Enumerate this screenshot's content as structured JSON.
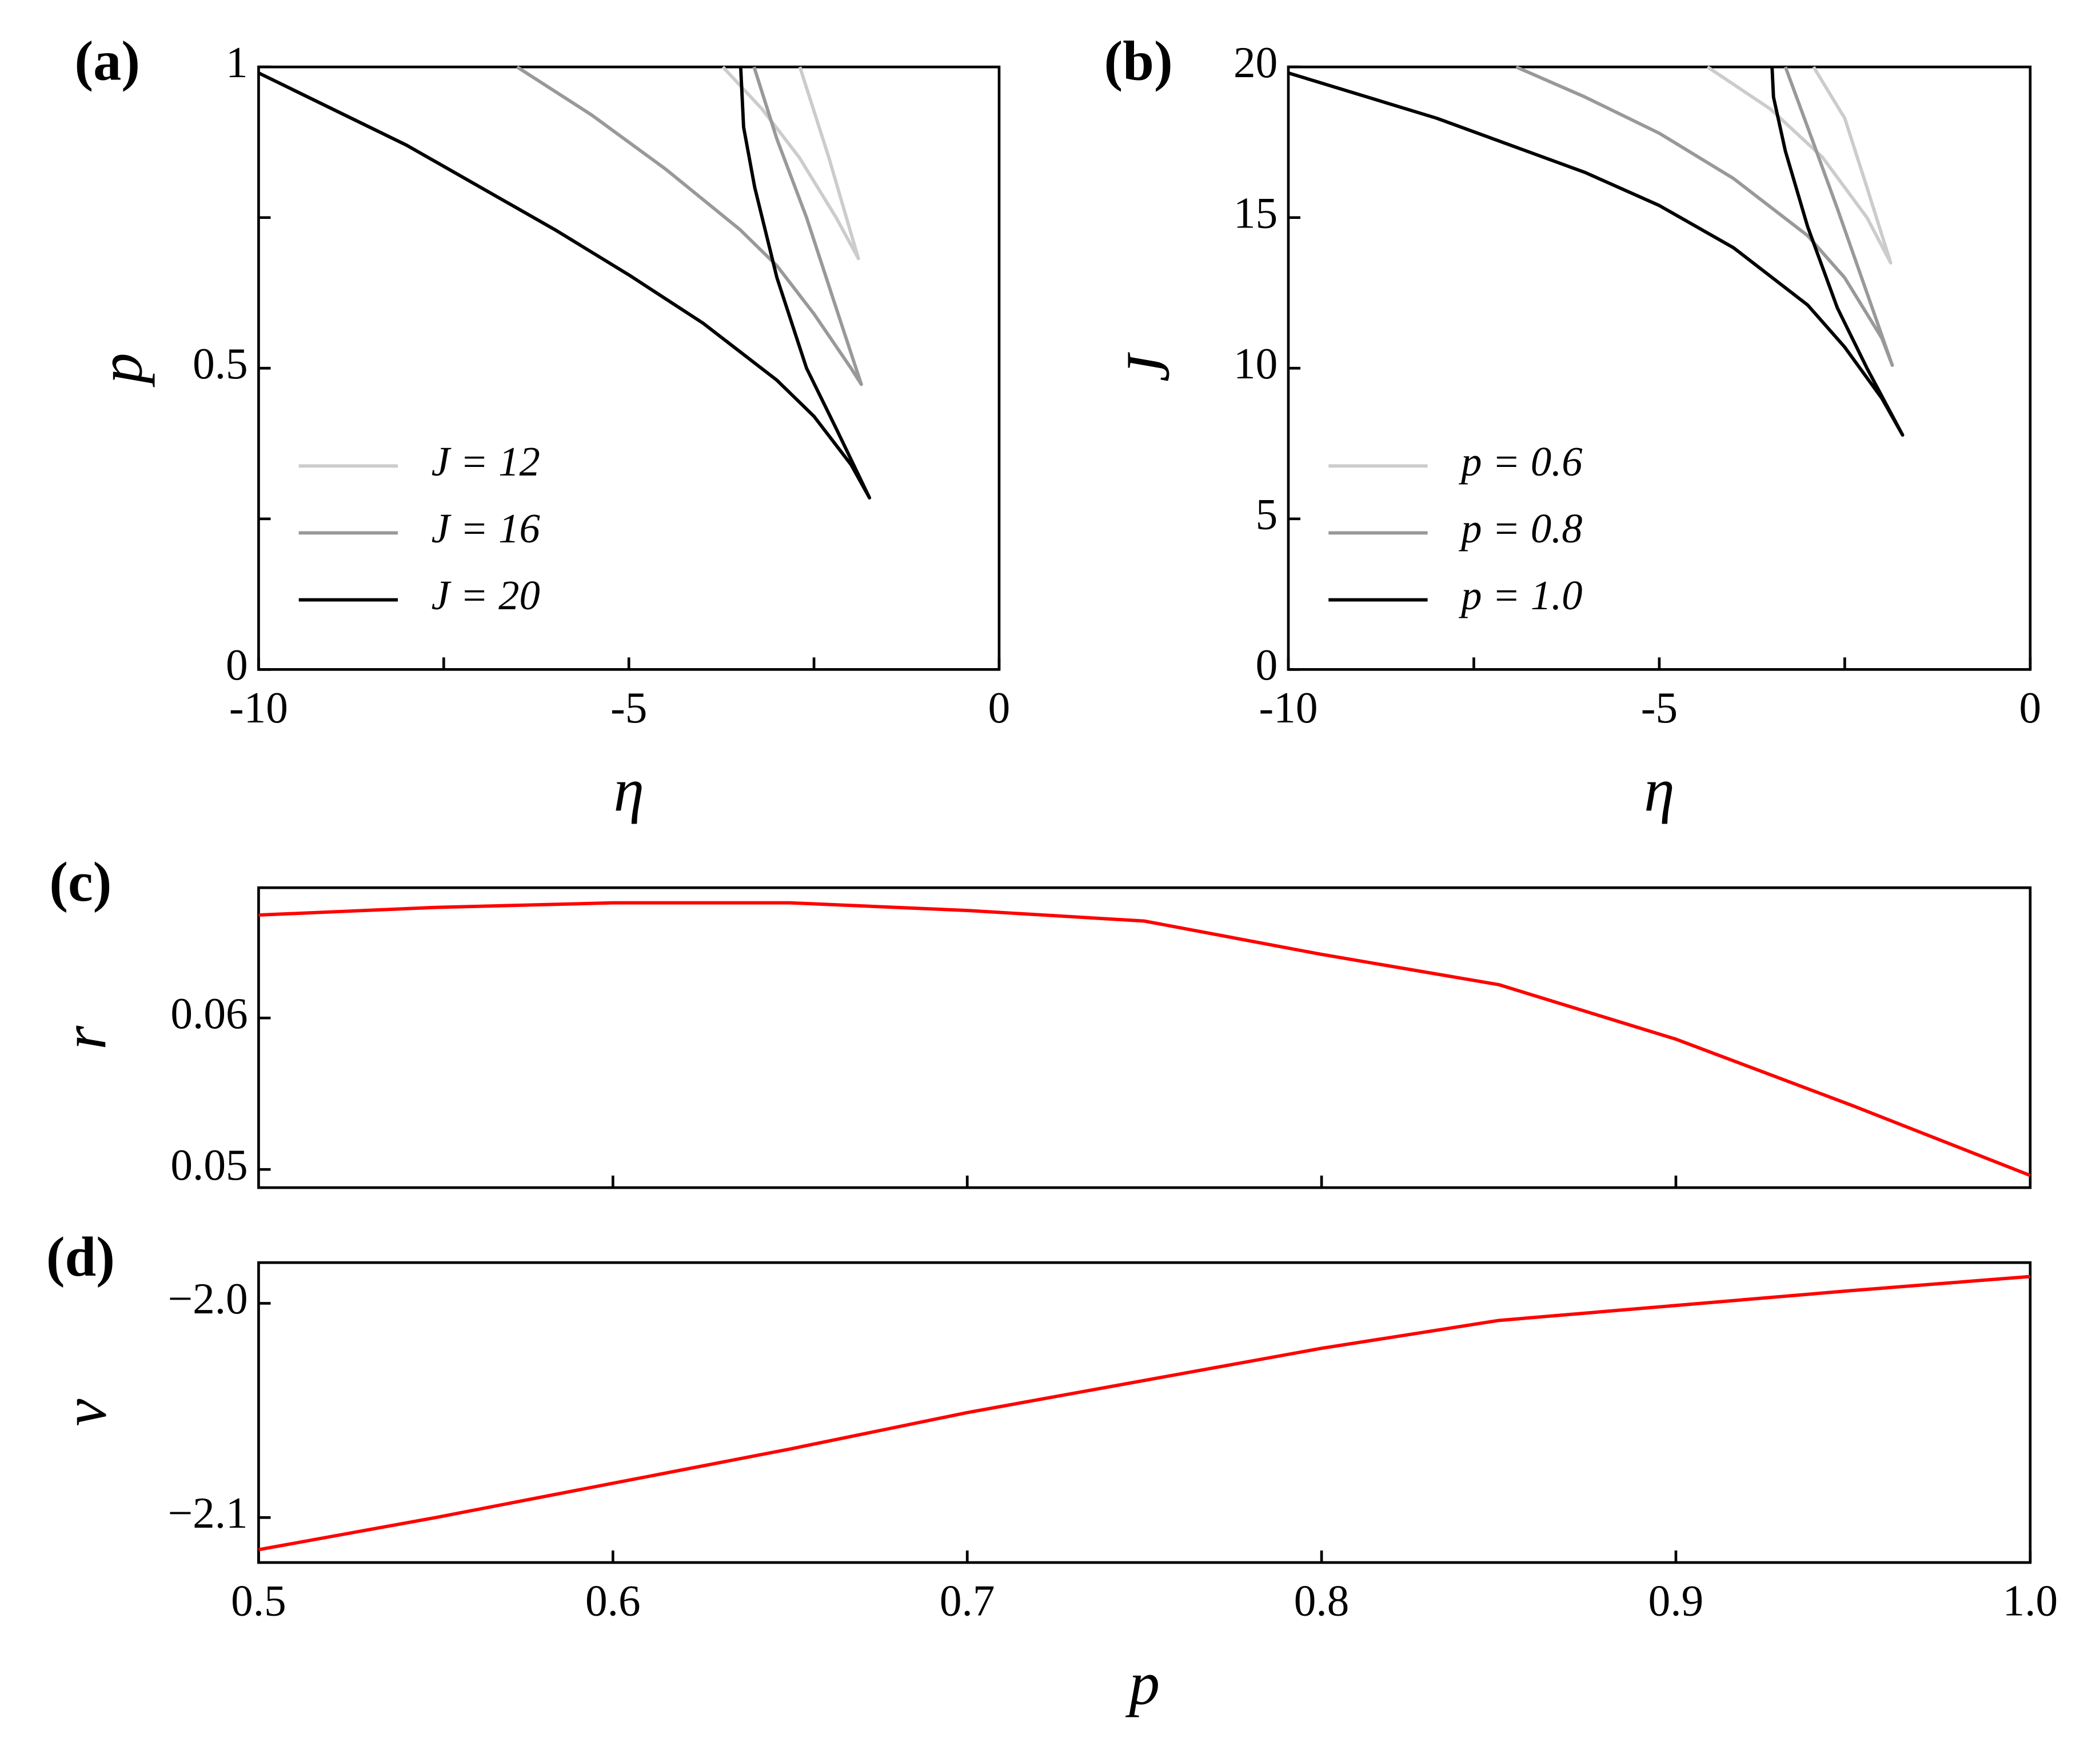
{
  "chart_data": [
    {
      "type": "line",
      "panel_label": "(a)",
      "xlabel": "η",
      "ylabel": "p",
      "xlim": [
        -10,
        0
      ],
      "xticks": [
        -10,
        -5,
        0
      ],
      "xminorticks": [
        -7.5,
        -2.5
      ],
      "ylim": [
        0,
        1
      ],
      "yticks": [
        0,
        0.5,
        1
      ],
      "yminorticks": [
        0.25,
        0.75
      ],
      "legend": "lower left",
      "series": [
        {
          "name": "J = 12",
          "color": "#cccccc",
          "x": [
            -3.73,
            -3.2,
            -2.7,
            -2.2,
            -1.9,
            -2.3,
            -2.69
          ],
          "values": [
            1,
            0.93,
            0.85,
            0.75,
            0.682,
            0.85,
            1
          ]
        },
        {
          "name": "J = 16",
          "color": "#999999",
          "x": [
            -6.51,
            -5.5,
            -4.5,
            -3.5,
            -3,
            -2.5,
            -2,
            -1.86,
            -2.2,
            -2.6,
            -3,
            -3.31
          ],
          "values": [
            1,
            0.92,
            0.83,
            0.73,
            0.67,
            0.59,
            0.5,
            0.473,
            0.6,
            0.75,
            0.88,
            1
          ]
        },
        {
          "name": "J = 20",
          "color": "#000000",
          "x": [
            -10,
            -8,
            -6,
            -5,
            -4,
            -3,
            -2.5,
            -2,
            -1.75,
            -2.2,
            -2.6,
            -3,
            -3.3,
            -3.45,
            -3.49
          ],
          "values": [
            0.99,
            0.87,
            0.73,
            0.655,
            0.575,
            0.48,
            0.42,
            0.34,
            0.285,
            0.4,
            0.5,
            0.65,
            0.8,
            0.9,
            1
          ]
        }
      ]
    },
    {
      "type": "line",
      "panel_label": "(b)",
      "xlabel": "η",
      "ylabel": "J",
      "xlim": [
        -10,
        0
      ],
      "xticks": [
        -10,
        -5,
        0
      ],
      "xminorticks": [
        -7.5,
        -2.5
      ],
      "ylim": [
        0,
        20
      ],
      "yticks": [
        0,
        5,
        10,
        15,
        20
      ],
      "legend": "lower left",
      "series": [
        {
          "name": "p = 0.6",
          "color": "#cccccc",
          "x": [
            -4.35,
            -3.5,
            -2.8,
            -2.2,
            -1.88,
            -2.2,
            -2.5,
            -2.92
          ],
          "values": [
            20,
            18.6,
            17,
            15,
            13.5,
            16,
            18.3,
            20
          ]
        },
        {
          "name": "p = 0.8",
          "color": "#999999",
          "x": [
            -6.93,
            -6,
            -5,
            -4,
            -3,
            -2.5,
            -2,
            -1.86,
            -2.2,
            -2.6,
            -3,
            -3.3
          ],
          "values": [
            20,
            19,
            17.8,
            16.3,
            14.4,
            13,
            11,
            10.1,
            12.5,
            15.3,
            18,
            20
          ]
        },
        {
          "name": "p = 1.0",
          "color": "#000000",
          "x": [
            -10,
            -8,
            -6,
            -5,
            -4,
            -3,
            -2.5,
            -2,
            -1.72,
            -2.2,
            -2.6,
            -3,
            -3.3,
            -3.46,
            -3.48
          ],
          "values": [
            19.8,
            18.3,
            16.5,
            15.4,
            14,
            12.1,
            10.7,
            9,
            7.78,
            10,
            12,
            14.7,
            17.2,
            19,
            20
          ]
        }
      ]
    },
    {
      "type": "line",
      "panel_label": "(c)",
      "ylabel": "r",
      "xlim": [
        0.5,
        1
      ],
      "xminorticks": [
        0.6,
        0.7,
        0.8,
        0.9
      ],
      "ylim": [
        0.0488,
        0.0686
      ],
      "yticks": [
        0.05,
        0.06
      ],
      "color": "#ff0000",
      "x": [
        0.5,
        0.55,
        0.6,
        0.65,
        0.7,
        0.75,
        0.8,
        0.85,
        0.9,
        0.95,
        1
      ],
      "values": [
        0.0668,
        0.0673,
        0.0676,
        0.0676,
        0.0671,
        0.0664,
        0.0642,
        0.0622,
        0.0586,
        0.0542,
        0.0496
      ]
    },
    {
      "type": "line",
      "panel_label": "(d)",
      "xlabel": "p",
      "ylabel": "v",
      "xlim": [
        0.5,
        1
      ],
      "xticks": [
        0.5,
        0.6,
        0.7,
        0.8,
        0.9,
        {
          "value": 1,
          "label": "1.0"
        }
      ],
      "ylim": [
        -2.121,
        -1.981
      ],
      "yticks": [
        {
          "value": -2,
          "label": "−2.0"
        },
        {
          "value": -2.1,
          "label": "−2.1"
        }
      ],
      "color": "#ff0000",
      "x": [
        0.5,
        0.55,
        0.6,
        0.65,
        0.7,
        0.75,
        0.8,
        0.85,
        0.9,
        0.95,
        1
      ],
      "values": [
        -2.115,
        -2.1,
        -2.084,
        -2.068,
        -2.051,
        -2.036,
        -2.021,
        -2.008,
        -2.001,
        -1.994,
        -1.9875
      ]
    }
  ]
}
